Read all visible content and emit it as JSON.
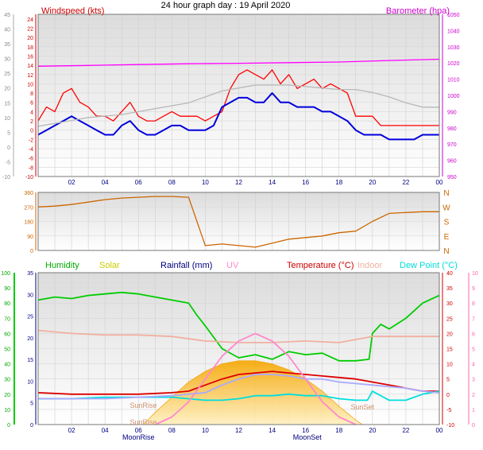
{
  "chart_data": {
    "type": "line",
    "title": "24 hour graph day : 19 April 2020",
    "hour_ticks": [
      "02",
      "04",
      "06",
      "08",
      "10",
      "12",
      "14",
      "16",
      "18",
      "20",
      "22",
      "00"
    ],
    "panels": [
      {
        "id": "wind",
        "left_axis": {
          "label": "Windspeed (kts)",
          "min": -10,
          "max": 25,
          "ticks": [
            -10,
            -8,
            -6,
            -4,
            -2,
            0,
            2,
            4,
            6,
            8,
            10,
            12,
            14,
            16,
            18,
            20,
            22,
            24
          ]
        },
        "outer_axis": {
          "min": -10,
          "max": 45,
          "ticks": [
            -10,
            -5,
            0,
            5,
            10,
            15,
            20,
            25,
            30,
            35,
            40,
            45
          ]
        },
        "right_axis": {
          "label": "Barometer (hpa)",
          "min": 950,
          "max": 1050,
          "ticks": [
            950,
            960,
            970,
            980,
            990,
            1000,
            1010,
            1020,
            1030,
            1040,
            1050
          ]
        },
        "series": [
          {
            "key": "gust",
            "color": "#ff0000",
            "x": [
              0,
              0.5,
              1,
              1.5,
              2,
              2.5,
              3,
              3.5,
              4,
              4.5,
              5,
              5.5,
              6,
              6.5,
              7,
              7.5,
              8,
              8.5,
              9,
              9.5,
              10,
              10.5,
              11,
              11.5,
              12,
              12.5,
              13,
              13.5,
              14,
              14.5,
              15,
              15.5,
              16,
              16.5,
              17,
              17.5,
              18,
              18.5,
              19,
              19.5,
              20,
              20.5,
              21,
              21.5,
              22,
              22.5,
              23,
              23.5,
              24
            ],
            "values": [
              2,
              5,
              4,
              8,
              9,
              6,
              5,
              3,
              3,
              2,
              4,
              6,
              3,
              2,
              2,
              3,
              4,
              3,
              3,
              3,
              2,
              3,
              4,
              9,
              12,
              13,
              12,
              11,
              13,
              10,
              12,
              9,
              10,
              11,
              9,
              10,
              9,
              8,
              3,
              3,
              3,
              1,
              1,
              1,
              1,
              1,
              1,
              1,
              1
            ]
          },
          {
            "key": "average",
            "color": "#0000dd",
            "x": [
              0,
              0.5,
              1,
              1.5,
              2,
              2.5,
              3,
              3.5,
              4,
              4.5,
              5,
              5.5,
              6,
              6.5,
              7,
              7.5,
              8,
              8.5,
              9,
              9.5,
              10,
              10.5,
              11,
              11.5,
              12,
              12.5,
              13,
              13.5,
              14,
              14.5,
              15,
              15.5,
              16,
              16.5,
              17,
              17.5,
              18,
              18.5,
              19,
              19.5,
              20,
              20.5,
              21,
              21.5,
              22,
              22.5,
              23,
              23.5,
              24
            ],
            "values": [
              -1,
              0,
              1,
              2,
              3,
              2,
              1,
              0,
              -1,
              -1,
              1,
              2,
              0,
              -1,
              -1,
              0,
              1,
              1,
              0,
              0,
              0,
              1,
              5,
              6,
              7,
              7,
              6,
              6,
              8,
              6,
              6,
              5,
              5,
              5,
              4,
              4,
              3,
              2,
              0,
              -1,
              -1,
              -1,
              -2,
              -2,
              -2,
              -2,
              -1,
              -1,
              -1
            ]
          },
          {
            "key": "barometer",
            "color": "#ff00ff",
            "axis": "right",
            "x": [
              0,
              3,
              6,
              9,
              12,
              15,
              18,
              21,
              24
            ],
            "values": [
              1018,
              1018.5,
              1019,
              1019.5,
              1019.8,
              1020.2,
              1020.6,
              1021.5,
              1022.3
            ]
          },
          {
            "key": "temp-grey",
            "color": "#b8b8b8",
            "axis": "outer",
            "x": [
              0,
              1,
              2,
              3,
              4,
              5,
              6,
              7,
              8,
              9,
              10,
              11,
              12,
              13,
              14,
              15,
              16,
              17,
              18,
              19,
              20,
              21,
              22,
              23,
              24
            ],
            "values": [
              7,
              8,
              9,
              10,
              10.5,
              11,
              12,
              13,
              14,
              15,
              17,
              19,
              20,
              21,
              21,
              21,
              20.5,
              20,
              19.5,
              19.5,
              18.5,
              17,
              15,
              13.5,
              13.5
            ]
          }
        ]
      },
      {
        "id": "direction",
        "left_axis": {
          "min": 0,
          "max": 360,
          "ticks": [
            0,
            90,
            180,
            270,
            360
          ]
        },
        "right_labels": [
          "N",
          "W",
          "S",
          "E",
          "N"
        ],
        "series": [
          {
            "key": "direction",
            "color": "#cc6600",
            "x": [
              0,
              1,
              2,
              3,
              4,
              5,
              6,
              7,
              8,
              9,
              10,
              11,
              12,
              13,
              14,
              15,
              16,
              17,
              18,
              19,
              20,
              21,
              22,
              23,
              24
            ],
            "values": [
              270,
              275,
              285,
              300,
              315,
              325,
              330,
              335,
              335,
              330,
              30,
              40,
              30,
              20,
              45,
              70,
              80,
              90,
              110,
              120,
              180,
              230,
              235,
              240,
              240
            ]
          }
        ]
      },
      {
        "id": "temperature",
        "legend": [
          "Humidity",
          "Solar",
          "Rainfall (mm)",
          "UV",
          "Temperature (°C)",
          "Indoor",
          "Dew Point (°C)"
        ],
        "humidity_axis": {
          "min": 0,
          "max": 100,
          "ticks": [
            0,
            10,
            20,
            30,
            40,
            50,
            60,
            70,
            80,
            90,
            100
          ]
        },
        "rain_axis": {
          "min": 0,
          "max": 35,
          "ticks": [
            0,
            5,
            10,
            15,
            20,
            25,
            30,
            35
          ]
        },
        "temp_axis": {
          "min": -10,
          "max": 40,
          "ticks": [
            -10,
            -5,
            0,
            5,
            10,
            15,
            20,
            25,
            30,
            35,
            40
          ]
        },
        "uv_axis": {
          "min": 0,
          "max": 10,
          "ticks": [
            0,
            1,
            2,
            3,
            4,
            5,
            6,
            7,
            8,
            9,
            10
          ]
        },
        "series": [
          {
            "key": "humidity",
            "color": "#00cc00",
            "axis": "humidity",
            "x": [
              0,
              1,
              2,
              3,
              4,
              5,
              6,
              7,
              8,
              9,
              9.5,
              10,
              11,
              12,
              13,
              14,
              15,
              16,
              17,
              18,
              19,
              19.8,
              20,
              20.5,
              21,
              22,
              23,
              24
            ],
            "values": [
              82,
              84,
              83,
              85,
              86,
              87,
              86,
              84,
              82,
              80,
              72,
              65,
              50,
              44,
              46,
              43,
              48,
              46,
              47,
              42,
              42,
              43,
              60,
              66,
              63,
              70,
              80,
              85
            ]
          },
          {
            "key": "temperature",
            "color": "#dd0000",
            "axis": "temp",
            "x": [
              0,
              2,
              4,
              6,
              8,
              9,
              10,
              11,
              12,
              13,
              14,
              15,
              16,
              17,
              18,
              19,
              20,
              21,
              22,
              23,
              24
            ],
            "values": [
              0.5,
              0,
              0,
              0,
              0.5,
              1,
              3,
              5,
              6.5,
              7,
              7.5,
              7,
              6.5,
              6,
              5.5,
              5,
              4,
              3,
              2,
              1,
              1
            ]
          },
          {
            "key": "indoor",
            "color": "#f0b0a0",
            "axis": "temp",
            "x": [
              0,
              2,
              4,
              6,
              8,
              10,
              12,
              14,
              16,
              18,
              20,
              22,
              24
            ],
            "values": [
              21,
              20,
              19.5,
              19.5,
              19,
              17.5,
              17,
              17,
              17.5,
              17,
              19,
              19,
              19
            ]
          },
          {
            "key": "dewpoint",
            "color": "#00dddd",
            "axis": "temp",
            "x": [
              0,
              2,
              4,
              6,
              8,
              10,
              11,
              12,
              13,
              14,
              15,
              16,
              17,
              18,
              19,
              19.7,
              20,
              21,
              22,
              23,
              24
            ],
            "values": [
              -1.5,
              -1.5,
              -1,
              -1,
              -1,
              -2,
              -2,
              -1.5,
              -0.5,
              -0.5,
              0,
              -0.5,
              -0.5,
              -1.5,
              -2,
              -2,
              1,
              -2,
              -2,
              0,
              1
            ]
          },
          {
            "key": "apparent",
            "color": "#aaaaff",
            "axis": "temp",
            "x": [
              0,
              2,
              4,
              6,
              8,
              10,
              11,
              12,
              13,
              14,
              15,
              16,
              17,
              18,
              19,
              20,
              21,
              22,
              23,
              24
            ],
            "values": [
              -1.5,
              -1.5,
              -1.5,
              -1,
              -0.5,
              0.5,
              3,
              5,
              6.5,
              6.5,
              6,
              5,
              5,
              4,
              3.5,
              3,
              2.5,
              2,
              1,
              0.5
            ]
          },
          {
            "key": "solar",
            "color": "#ffcc66",
            "axis": "humidity",
            "fill": true,
            "x": [
              6.3,
              7,
              8,
              9,
              10,
              11,
              12,
              13,
              14,
              15,
              16,
              17,
              18,
              19,
              19.4
            ],
            "values": [
              0,
              8,
              18,
              28,
              35,
              40,
              42,
              42,
              40,
              36,
              30,
              22,
              12,
              3,
              0
            ]
          },
          {
            "key": "uv",
            "color": "#ff88cc",
            "axis": "uv",
            "x": [
              7,
              8,
              9,
              10,
              11,
              12,
              13,
              14,
              15,
              16,
              17,
              18,
              19
            ],
            "values": [
              0,
              0.5,
              1.5,
              3,
              4.5,
              5.5,
              6,
              5.5,
              4.5,
              3,
              1.5,
              0.5,
              0
            ]
          }
        ],
        "annotations": [
          {
            "text": "SunRise",
            "x": 6.3
          },
          {
            "text": "SunRise",
            "x": 6.3
          },
          {
            "text": "SunSet",
            "x": 19.4
          },
          {
            "text": "MoonRise",
            "x": 6.0
          },
          {
            "text": "MoonSet",
            "x": 16.1
          }
        ]
      }
    ]
  }
}
